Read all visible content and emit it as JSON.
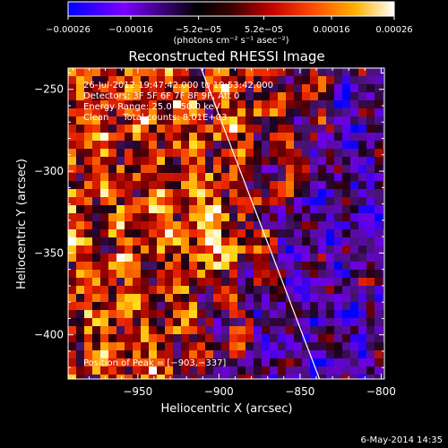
{
  "chart_data": {
    "type": "heatmap",
    "title": "Reconstructed RHESSI Image",
    "xlabel": "Heliocentric X (arcsec)",
    "ylabel": "Heliocentric Y (arcsec)",
    "xlim": [
      -993,
      -798
    ],
    "ylim": [
      -427,
      -237
    ],
    "x_ticks": [
      -950,
      -900,
      -850,
      -800
    ],
    "x_tick_labels": [
      "−950",
      "−900",
      "−850",
      "−800"
    ],
    "y_ticks": [
      -250,
      -300,
      -350,
      -400
    ],
    "y_tick_labels": [
      "−250",
      "−300",
      "−350",
      "−400"
    ],
    "colorbar": {
      "range": [
        -0.00026,
        0.00026
      ],
      "ticks": [
        -0.00026,
        -0.00016,
        -5.2e-05,
        5.2e-05,
        0.00016,
        0.00026
      ],
      "tick_labels": [
        "−0.00026",
        "−0.00016",
        "−5.2e−05",
        "5.2e−05",
        "0.00016",
        "0.00026"
      ],
      "unit_label": "(photons cm⁻² s⁻¹ asec⁻²)",
      "colormap": [
        "#0000ff",
        "#7a00ff",
        "#000000",
        "#b30000",
        "#ff3c00",
        "#ff9a00",
        "#ffe100",
        "#ffffff"
      ]
    },
    "annotations": [
      "26-Jul-2012 19:47:42.000 to 19:53:42.000",
      "Detectors: 3F 5F 6F 7F 8F 9F, Att 0",
      "Energy Range: 25.0 - 50.0 keV",
      "Clean     Total counts: 8.01E+03"
    ],
    "peak_label": "Position of Peak = [−903,−337]",
    "peak_position": [
      -903,
      -337
    ],
    "limb_line": [
      [
        -911,
        -237
      ],
      [
        -838,
        -427
      ]
    ],
    "grid": false
  },
  "footer": {
    "date": "6-May-2014 14:35"
  }
}
